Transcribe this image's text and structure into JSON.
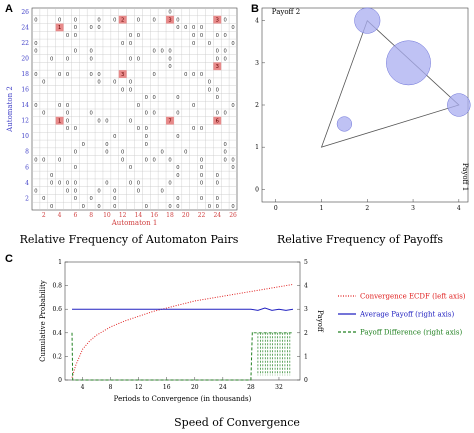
{
  "panels": {
    "a": {
      "letter": "A",
      "caption": "Relative Frequency of Automaton Pairs"
    },
    "b": {
      "letter": "B",
      "caption": "Relative Frequency of Payoffs"
    },
    "c": {
      "letter": "C",
      "caption": "Speed of Convergence"
    }
  },
  "chart_data": [
    {
      "type": "heatmap",
      "panel": "A",
      "xlabel": "Automaton 1",
      "ylabel": "Automaton 2",
      "x_ticks": [
        "2",
        "4",
        "6",
        "8",
        "10",
        "12",
        "14",
        "16",
        "18",
        "20",
        "22",
        "24",
        "26"
      ],
      "y_ticks": [
        "2",
        "4",
        "6",
        "8",
        "10",
        "12",
        "14",
        "16",
        "18",
        "20",
        "22",
        "24",
        "26"
      ],
      "grid_size": 26,
      "colors": {
        "axis_text": "#d04040",
        "y_text": "#4040c8",
        "highlight": "#e88a8a"
      },
      "highlighted_cells": [
        {
          "x": 12,
          "y": 25,
          "value": "2"
        },
        {
          "x": 18,
          "y": 25,
          "value": "3"
        },
        {
          "x": 24,
          "y": 25,
          "value": "3"
        },
        {
          "x": 12,
          "y": 18,
          "value": "3"
        },
        {
          "x": 24,
          "y": 19,
          "value": "3"
        },
        {
          "x": 18,
          "y": 12,
          "value": "7"
        },
        {
          "x": 24,
          "y": 12,
          "value": "6"
        },
        {
          "x": 4,
          "y": 12,
          "value": "1"
        },
        {
          "x": 4,
          "y": 24,
          "value": "1"
        }
      ]
    },
    {
      "type": "scatter",
      "panel": "B",
      "xlabel": "Payoff 1",
      "ylabel": "Payoff 2",
      "x_ticks": [
        "0",
        "1",
        "2",
        "3",
        "4"
      ],
      "y_ticks": [
        "0",
        "1",
        "2",
        "3",
        "4"
      ],
      "xlim": [
        -0.3,
        4.2
      ],
      "ylim": [
        -0.3,
        4.3
      ],
      "triangle": [
        [
          1,
          1
        ],
        [
          2,
          4
        ],
        [
          4,
          2
        ]
      ],
      "bubbles": [
        {
          "x": 2.0,
          "y": 4.0,
          "size": 0.15
        },
        {
          "x": 4.0,
          "y": 2.0,
          "size": 0.12
        },
        {
          "x": 2.9,
          "y": 3.0,
          "size": 0.45
        },
        {
          "x": 1.5,
          "y": 1.55,
          "size": 0.05
        }
      ],
      "colors": {
        "bubble": "#a9aef0",
        "bubble_edge": "#6a70d8",
        "triangle": "#555555"
      }
    },
    {
      "type": "line",
      "panel": "C",
      "xlabel": "Periods to Convergence (in thousands)",
      "ylabel": "Cumulative Probability",
      "y2label": "Payoff",
      "x_ticks": [
        "4",
        "8",
        "12",
        "16",
        "20",
        "24",
        "28",
        "32"
      ],
      "y_ticks": [
        "0",
        "0.2",
        "0.4",
        "0.6",
        "0.8",
        "1"
      ],
      "y2_ticks": [
        "0",
        "1",
        "2",
        "3",
        "4",
        "5"
      ],
      "xlim": [
        1.5,
        35
      ],
      "ylim": [
        0,
        1
      ],
      "y2lim": [
        0,
        5
      ],
      "legend": [
        {
          "name": "Convergence ECDF (left axis)",
          "color": "#e02020",
          "style": "dotted"
        },
        {
          "name": "Average Payoff (right axis)",
          "color": "#2020c0",
          "style": "solid"
        },
        {
          "name": "Payoff Difference (right axis)",
          "color": "#208020",
          "style": "dashed"
        }
      ],
      "series": [
        {
          "name": "Convergence ECDF (left axis)",
          "axis": "left",
          "x": [
            2.5,
            3,
            4,
            5,
            6,
            8,
            10,
            12,
            14,
            16,
            18,
            20,
            22,
            24,
            26,
            28,
            30,
            32,
            34
          ],
          "y": [
            0.02,
            0.12,
            0.26,
            0.33,
            0.38,
            0.45,
            0.5,
            0.54,
            0.58,
            0.61,
            0.64,
            0.67,
            0.69,
            0.71,
            0.73,
            0.75,
            0.77,
            0.79,
            0.81
          ]
        },
        {
          "name": "Average Payoff (right axis)",
          "axis": "right",
          "x": [
            2.5,
            6,
            10,
            14,
            18,
            22,
            26,
            28,
            29,
            30,
            31,
            32,
            33,
            34
          ],
          "y": [
            3.0,
            3.0,
            3.0,
            3.0,
            3.0,
            3.0,
            3.0,
            3.0,
            2.95,
            3.05,
            2.95,
            3.0,
            2.95,
            3.0
          ]
        },
        {
          "name": "Payoff Difference (right axis)",
          "axis": "right",
          "x": [
            2.5,
            2.6,
            2.7,
            3,
            6,
            10,
            14,
            18,
            22,
            26,
            28,
            28.2,
            28.4
          ],
          "y": [
            2.0,
            0,
            0,
            0,
            0,
            0,
            0,
            0,
            0,
            0,
            0,
            2.0,
            2.0
          ]
        }
      ]
    }
  ]
}
